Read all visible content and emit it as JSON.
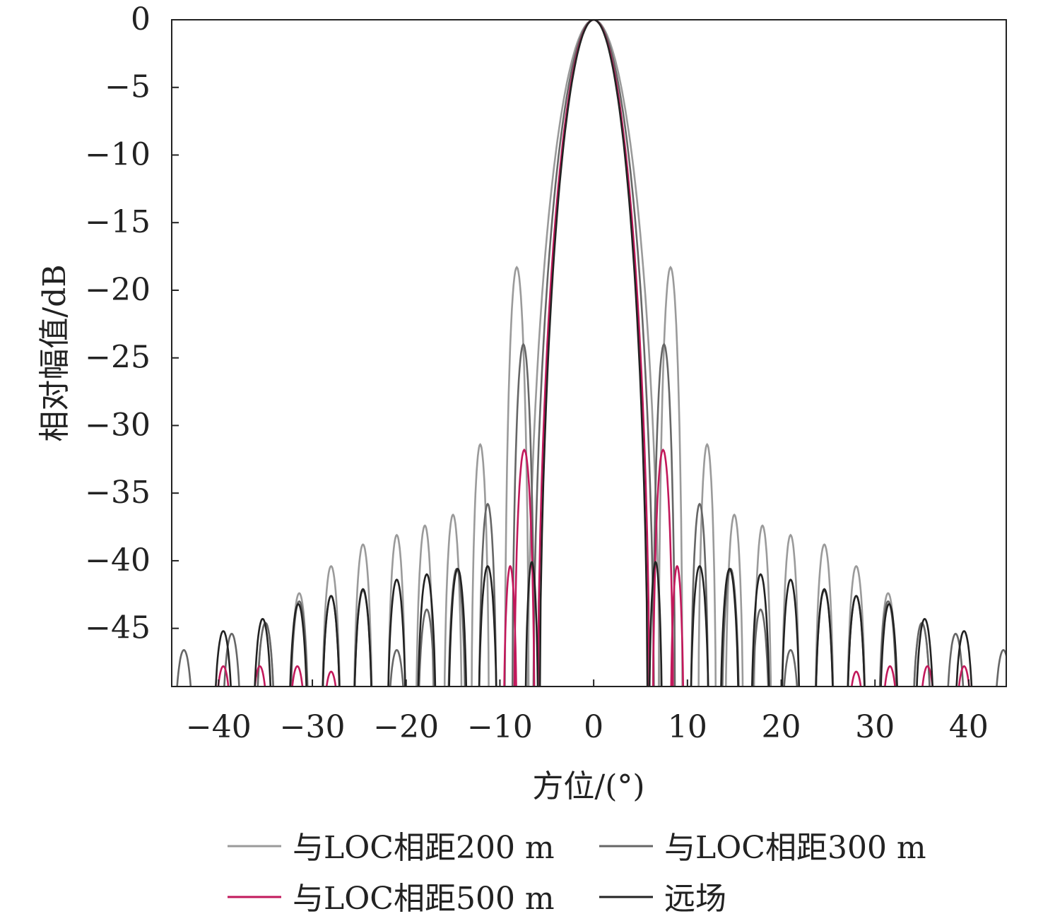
{
  "chart_data": {
    "type": "line",
    "title": "",
    "xlabel": "方位/(°)",
    "ylabel": "相对幅值/dB",
    "xlim": [
      -45,
      44
    ],
    "ylim": [
      -49.3,
      0
    ],
    "x_ticks": [
      -40,
      -30,
      -20,
      -10,
      0,
      10,
      20,
      30,
      40
    ],
    "x_tick_labels": [
      "−40",
      "−30",
      "−20",
      "−10",
      "0",
      "10",
      "20",
      "30",
      "40"
    ],
    "y_ticks": [
      0,
      -5,
      -10,
      -15,
      -20,
      -25,
      -30,
      -35,
      -40,
      -45
    ],
    "y_tick_labels": [
      "0",
      "−5",
      "−10",
      "−15",
      "−20",
      "−25",
      "−30",
      "−35",
      "−40",
      "−45"
    ],
    "grid": false,
    "legend_position": "bottom",
    "series": [
      {
        "name": "与LOC相距200 m",
        "color": "#9a9a9a",
        "main_lobe_half_width": 7.1,
        "sidelobes": [
          {
            "x": 8.2,
            "peak": -18.3,
            "half_width": 1.3
          },
          {
            "x": 12.1,
            "peak": -31.4,
            "half_width": 0.95
          },
          {
            "x": 15.0,
            "peak": -36.6,
            "half_width": 0.95
          },
          {
            "x": 18.0,
            "peak": -37.4,
            "half_width": 0.95
          },
          {
            "x": 21.0,
            "peak": -38.1,
            "half_width": 0.95
          },
          {
            "x": 24.6,
            "peak": -38.8,
            "half_width": 1.0
          },
          {
            "x": 28.0,
            "peak": -40.4,
            "half_width": 1.0
          },
          {
            "x": 31.4,
            "peak": -42.4,
            "half_width": 1.0
          },
          {
            "x": 35.0,
            "peak": -44.6,
            "half_width": 1.0
          }
        ]
      },
      {
        "name": "与LOC相距300 m",
        "color": "#666666",
        "main_lobe_half_width": 6.5,
        "sidelobes": [
          {
            "x": 7.5,
            "peak": -24.0,
            "half_width": 1.2
          },
          {
            "x": 11.3,
            "peak": -35.8,
            "half_width": 0.95
          },
          {
            "x": 14.6,
            "peak": -40.6,
            "half_width": 0.95
          },
          {
            "x": 17.8,
            "peak": -43.6,
            "half_width": 0.95
          },
          {
            "x": 21.0,
            "peak": -46.6,
            "half_width": 0.95
          },
          {
            "x": 24.6,
            "peak": -42.2,
            "half_width": 1.0
          },
          {
            "x": 28.0,
            "peak": -42.6,
            "half_width": 1.0
          },
          {
            "x": 31.4,
            "peak": -43.0,
            "half_width": 1.0
          },
          {
            "x": 35.0,
            "peak": -44.6,
            "half_width": 1.0
          },
          {
            "x": 38.6,
            "peak": -45.4,
            "half_width": 1.0
          },
          {
            "x": 43.7,
            "peak": -46.6,
            "half_width": 1.0
          }
        ]
      },
      {
        "name": "与LOC相距500 m",
        "color": "#c2185b",
        "main_lobe_half_width": 6.0,
        "sidelobes": [
          {
            "x": 7.4,
            "peak": -31.8,
            "half_width": 1.1
          },
          {
            "x": 8.9,
            "peak": -40.4,
            "half_width": 0.7
          },
          {
            "x": 28.0,
            "peak": -48.2,
            "half_width": 0.9
          },
          {
            "x": 31.6,
            "peak": -47.8,
            "half_width": 0.9
          },
          {
            "x": 35.6,
            "peak": -47.8,
            "half_width": 0.9
          },
          {
            "x": 39.5,
            "peak": -47.8,
            "half_width": 0.9
          }
        ]
      },
      {
        "name": "远场",
        "color": "#222222",
        "main_lobe_half_width": 5.8,
        "sidelobes": [
          {
            "x": 6.6,
            "peak": -40.1,
            "half_width": 0.7
          },
          {
            "x": 11.3,
            "peak": -40.4,
            "half_width": 1.0
          },
          {
            "x": 14.5,
            "peak": -40.6,
            "half_width": 1.0
          },
          {
            "x": 17.8,
            "peak": -41.0,
            "half_width": 1.0
          },
          {
            "x": 21.0,
            "peak": -41.4,
            "half_width": 1.0
          },
          {
            "x": 24.6,
            "peak": -42.1,
            "half_width": 1.0
          },
          {
            "x": 28.0,
            "peak": -42.6,
            "half_width": 1.0
          },
          {
            "x": 31.5,
            "peak": -43.2,
            "half_width": 1.0
          },
          {
            "x": 35.3,
            "peak": -44.3,
            "half_width": 1.0
          },
          {
            "x": 39.5,
            "peak": -45.2,
            "half_width": 1.0
          }
        ]
      }
    ],
    "legend": [
      {
        "label": "与LOC相距200 m",
        "color": "#9a9a9a"
      },
      {
        "label": "与LOC相距300 m",
        "color": "#666666"
      },
      {
        "label": "与LOC相距500 m",
        "color": "#c2185b"
      },
      {
        "label": "远场",
        "color": "#222222"
      }
    ]
  }
}
